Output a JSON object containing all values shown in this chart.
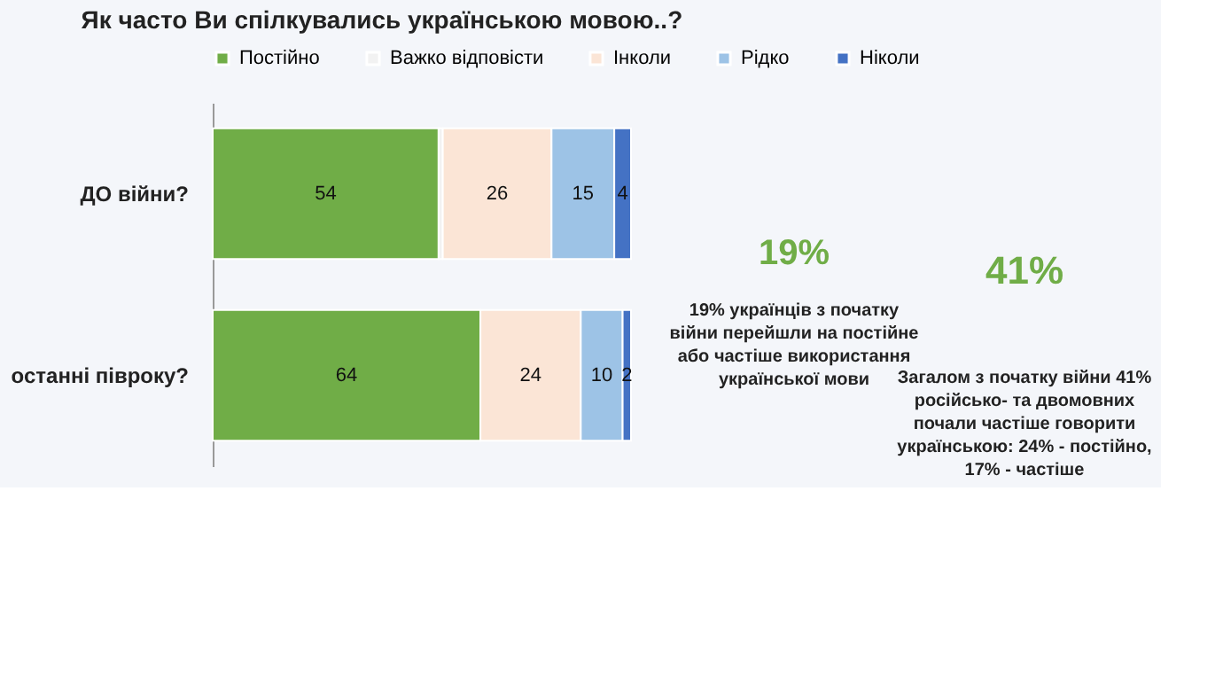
{
  "chart_data": {
    "type": "bar",
    "orientation": "horizontal",
    "stacked": true,
    "title": "Як часто Ви спілкувались українською мовою..?",
    "categories": [
      "ДО війни?",
      "останні півроку?"
    ],
    "series": [
      {
        "name": "Постійно",
        "color": "#70ad47",
        "values": [
          54,
          64
        ],
        "value_labels": [
          "54",
          "64"
        ]
      },
      {
        "name": "Важко відповісти",
        "color": "#f2f2f2",
        "values": [
          1,
          0
        ],
        "value_labels": [
          null,
          null
        ]
      },
      {
        "name": "Інколи",
        "color": "#fbe5d6",
        "values": [
          26,
          24
        ],
        "value_labels": [
          "26",
          "24"
        ]
      },
      {
        "name": "Рідко",
        "color": "#9dc3e6",
        "values": [
          15,
          10
        ],
        "value_labels": [
          "15",
          "10"
        ]
      },
      {
        "name": "Ніколи",
        "color": "#4472c4",
        "values": [
          4,
          2
        ],
        "value_labels": [
          "4",
          "2"
        ]
      }
    ],
    "legend": "top",
    "tick_labels": "y",
    "annotations": [
      "19%",
      "19% українців з початку війни перейшли на постійне або частіше використання української мови",
      "41%",
      "Загалом з початку війни 41% російсько- та двомовних почали частіше говорити українською: 24% - постійно, 17% - частіше"
    ]
  }
}
